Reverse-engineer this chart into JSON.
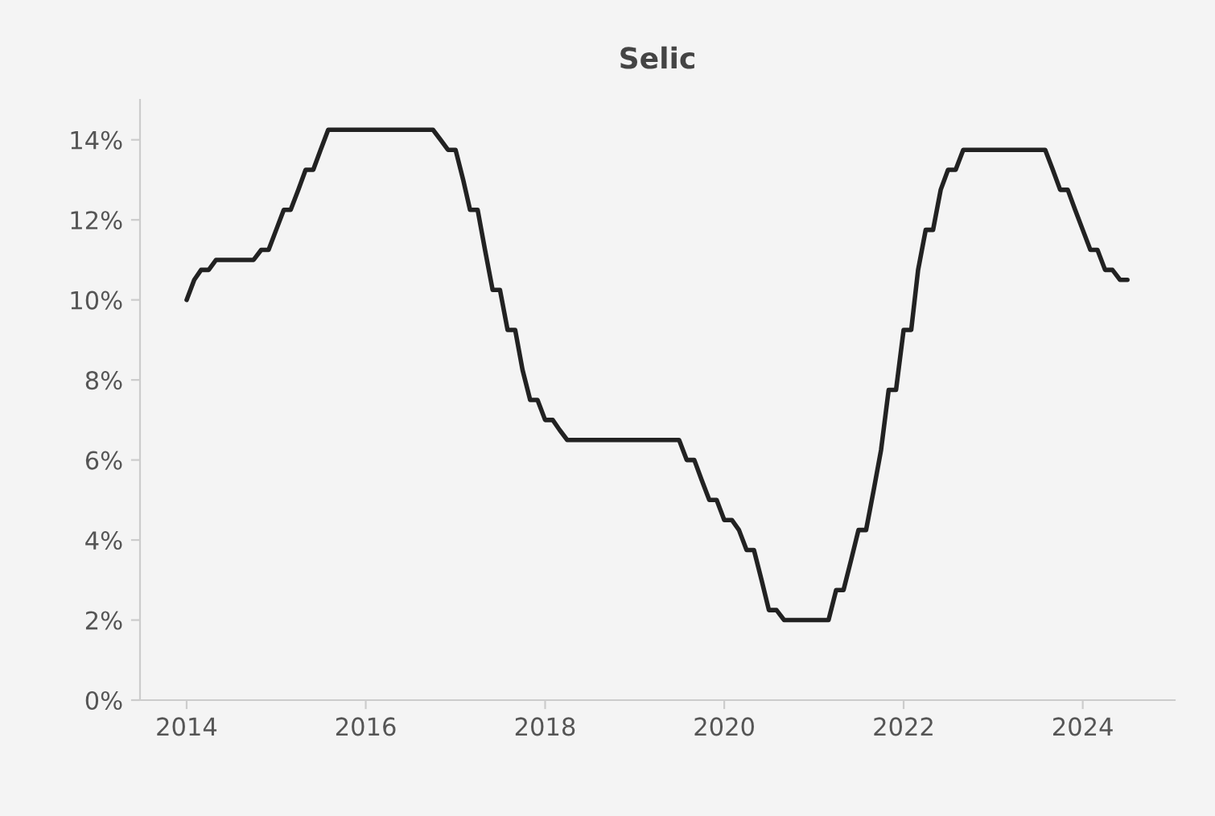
{
  "chart_data": {
    "type": "line",
    "title": "Selic",
    "x": [
      "2014-01",
      "2014-02",
      "2014-03",
      "2014-04",
      "2014-05",
      "2014-06",
      "2014-07",
      "2014-08",
      "2014-09",
      "2014-10",
      "2014-11",
      "2014-12",
      "2015-01",
      "2015-02",
      "2015-03",
      "2015-04",
      "2015-05",
      "2015-06",
      "2015-07",
      "2015-08",
      "2015-09",
      "2015-10",
      "2015-11",
      "2015-12",
      "2016-01",
      "2016-02",
      "2016-03",
      "2016-04",
      "2016-05",
      "2016-06",
      "2016-07",
      "2016-08",
      "2016-09",
      "2016-10",
      "2016-11",
      "2016-12",
      "2017-01",
      "2017-02",
      "2017-03",
      "2017-04",
      "2017-05",
      "2017-06",
      "2017-07",
      "2017-08",
      "2017-09",
      "2017-10",
      "2017-11",
      "2017-12",
      "2018-01",
      "2018-02",
      "2018-03",
      "2018-04",
      "2018-05",
      "2018-06",
      "2018-07",
      "2018-08",
      "2018-09",
      "2018-10",
      "2018-11",
      "2018-12",
      "2019-01",
      "2019-02",
      "2019-03",
      "2019-04",
      "2019-05",
      "2019-06",
      "2019-07",
      "2019-08",
      "2019-09",
      "2019-10",
      "2019-11",
      "2019-12",
      "2020-01",
      "2020-02",
      "2020-03",
      "2020-04",
      "2020-05",
      "2020-06",
      "2020-07",
      "2020-08",
      "2020-09",
      "2020-10",
      "2020-11",
      "2020-12",
      "2021-01",
      "2021-02",
      "2021-03",
      "2021-04",
      "2021-05",
      "2021-06",
      "2021-07",
      "2021-08",
      "2021-09",
      "2021-10",
      "2021-11",
      "2021-12",
      "2022-01",
      "2022-02",
      "2022-03",
      "2022-04",
      "2022-05",
      "2022-06",
      "2022-07",
      "2022-08",
      "2022-09",
      "2022-10",
      "2022-11",
      "2022-12",
      "2023-01",
      "2023-02",
      "2023-03",
      "2023-04",
      "2023-05",
      "2023-06",
      "2023-07",
      "2023-08",
      "2023-09",
      "2023-10",
      "2023-11",
      "2023-12",
      "2024-01",
      "2024-02",
      "2024-03",
      "2024-04",
      "2024-05",
      "2024-06",
      "2024-07"
    ],
    "series": [
      {
        "color": "#222222",
        "values": [
          10.0,
          10.5,
          10.75,
          10.75,
          11.0,
          11.0,
          11.0,
          11.0,
          11.0,
          11.0,
          11.25,
          11.25,
          11.75,
          12.25,
          12.25,
          12.75,
          13.25,
          13.25,
          13.75,
          14.25,
          14.25,
          14.25,
          14.25,
          14.25,
          14.25,
          14.25,
          14.25,
          14.25,
          14.25,
          14.25,
          14.25,
          14.25,
          14.25,
          14.25,
          14.0,
          13.75,
          13.75,
          13.0,
          12.25,
          12.25,
          11.25,
          10.25,
          10.25,
          9.25,
          9.25,
          8.25,
          7.5,
          7.5,
          7.0,
          7.0,
          6.75,
          6.5,
          6.5,
          6.5,
          6.5,
          6.5,
          6.5,
          6.5,
          6.5,
          6.5,
          6.5,
          6.5,
          6.5,
          6.5,
          6.5,
          6.5,
          6.5,
          6.0,
          6.0,
          5.5,
          5.0,
          5.0,
          4.5,
          4.5,
          4.25,
          3.75,
          3.75,
          3.0,
          2.25,
          2.25,
          2.0,
          2.0,
          2.0,
          2.0,
          2.0,
          2.0,
          2.0,
          2.75,
          2.75,
          3.5,
          4.25,
          4.25,
          5.25,
          6.25,
          7.75,
          7.75,
          9.25,
          9.25,
          10.75,
          11.75,
          11.75,
          12.75,
          13.25,
          13.25,
          13.75,
          13.75,
          13.75,
          13.75,
          13.75,
          13.75,
          13.75,
          13.75,
          13.75,
          13.75,
          13.75,
          13.75,
          13.25,
          12.75,
          12.75,
          12.25,
          11.75,
          11.25,
          11.25,
          10.75,
          10.75,
          10.5,
          10.5
        ]
      }
    ],
    "xlim": [
      "2013-06-25",
      "2025-01-10"
    ],
    "xticks": [
      {
        "value": "2014-01-01",
        "label": "2014"
      },
      {
        "value": "2016-01-01",
        "label": "2016"
      },
      {
        "value": "2018-01-01",
        "label": "2018"
      },
      {
        "value": "2020-01-01",
        "label": "2020"
      },
      {
        "value": "2022-01-01",
        "label": "2022"
      },
      {
        "value": "2024-01-01",
        "label": "2024"
      }
    ],
    "ylim": [
      0,
      15
    ],
    "yticks": [
      {
        "value": 0,
        "label": "0%"
      },
      {
        "value": 2,
        "label": "2%"
      },
      {
        "value": 4,
        "label": "4%"
      },
      {
        "value": 6,
        "label": "6%"
      },
      {
        "value": 8,
        "label": "8%"
      },
      {
        "value": 10,
        "label": "10%"
      },
      {
        "value": 12,
        "label": "12%"
      },
      {
        "value": 14,
        "label": "14%"
      }
    ],
    "grid": false,
    "legend": false
  }
}
